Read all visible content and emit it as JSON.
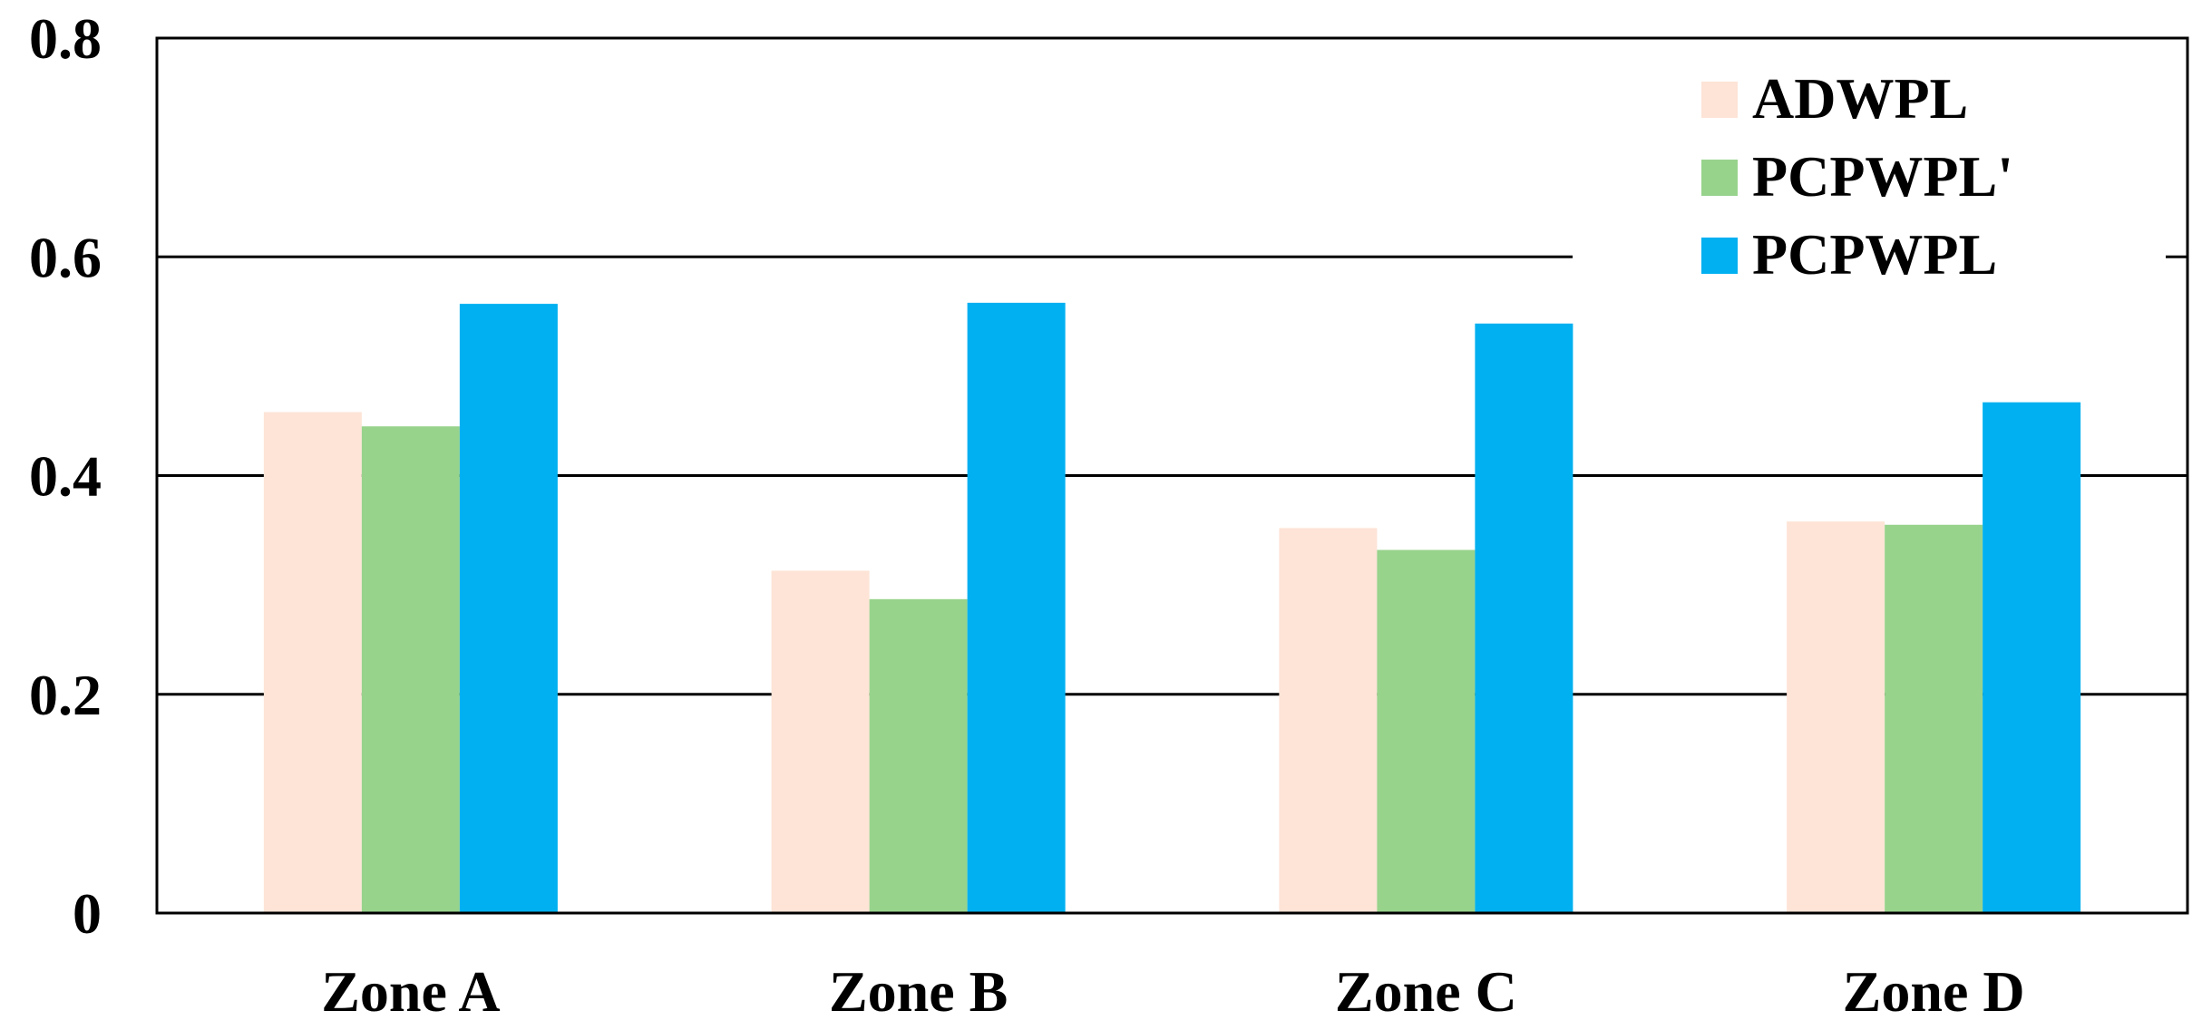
{
  "chart_data": {
    "type": "bar",
    "title": "",
    "xlabel": "",
    "ylabel": "",
    "ylim": [
      0,
      0.8
    ],
    "yticks": [
      "0",
      "0.2",
      "0.4",
      "0.6",
      "0.8"
    ],
    "grid": true,
    "legend_position": "top-right",
    "categories": [
      "Zone A",
      "Zone B",
      "Zone C",
      "Zone D"
    ],
    "series": [
      {
        "name": "ADWPL",
        "color": "#FDE4D6",
        "values": [
          0.458,
          0.313,
          0.352,
          0.358
        ]
      },
      {
        "name": "PCPWPL'",
        "color": "#98D38C",
        "values": [
          0.445,
          0.287,
          0.332,
          0.355
        ]
      },
      {
        "name": "PCPWPL",
        "color": "#00B0F0",
        "values": [
          0.557,
          0.558,
          0.539,
          0.467
        ]
      }
    ]
  }
}
